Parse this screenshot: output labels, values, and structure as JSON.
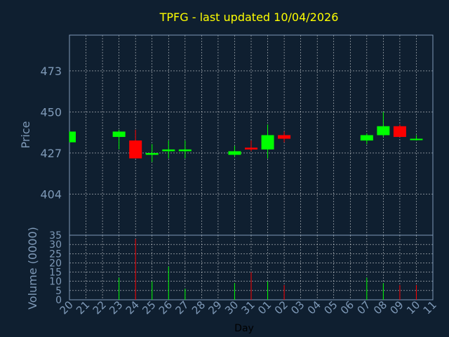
{
  "chart_data": [
    {
      "type": "candlestick",
      "title": "TPFG - last updated 10/04/2026",
      "ylabel": "Price",
      "ylim": [
        381,
        493
      ],
      "yticks": [
        404,
        427,
        450,
        473
      ],
      "x": [
        "20",
        "21",
        "22",
        "23",
        "24",
        "25",
        "26",
        "27",
        "28",
        "29",
        "30",
        "31",
        "01",
        "02",
        "03",
        "04",
        "05",
        "06",
        "07",
        "08",
        "09",
        "10",
        "11"
      ],
      "candles": [
        {
          "day": "20",
          "open": 433,
          "close": 439,
          "high": 439,
          "low": 433
        },
        {
          "day": "23",
          "open": 436,
          "close": 439,
          "high": 440,
          "low": 429
        },
        {
          "day": "24",
          "open": 434,
          "close": 424,
          "high": 440,
          "low": 424
        },
        {
          "day": "25",
          "open": 426,
          "close": 427,
          "high": 432,
          "low": 422
        },
        {
          "day": "26",
          "open": 428,
          "close": 429,
          "high": 434,
          "low": 424
        },
        {
          "day": "27",
          "open": 428,
          "close": 429,
          "high": 434,
          "low": 424
        },
        {
          "day": "30",
          "open": 426,
          "close": 428,
          "high": 431,
          "low": 425
        },
        {
          "day": "31",
          "open": 430,
          "close": 429,
          "high": 434,
          "low": 428
        },
        {
          "day": "01",
          "open": 429,
          "close": 437,
          "high": 443,
          "low": 424
        },
        {
          "day": "02",
          "open": 437,
          "close": 435,
          "high": 439,
          "low": 433
        },
        {
          "day": "07",
          "open": 434,
          "close": 437,
          "high": 438,
          "low": 432
        },
        {
          "day": "08",
          "open": 437,
          "close": 442,
          "high": 450,
          "low": 436
        },
        {
          "day": "09",
          "open": 442,
          "close": 436,
          "high": 443,
          "low": 436
        },
        {
          "day": "10",
          "open": 435,
          "close": 435,
          "high": 437,
          "low": 434
        }
      ],
      "colors": {
        "up": "#00ff00",
        "down": "#ff0000"
      }
    },
    {
      "type": "bar",
      "ylabel": "Volume (0000)",
      "xlabel": "Day",
      "ylim": [
        0,
        35
      ],
      "yticks": [
        0,
        5,
        10,
        15,
        20,
        25,
        30,
        35
      ],
      "x": [
        "20",
        "21",
        "22",
        "23",
        "24",
        "25",
        "26",
        "27",
        "28",
        "29",
        "30",
        "31",
        "01",
        "02",
        "03",
        "04",
        "05",
        "06",
        "07",
        "08",
        "09",
        "10",
        "11"
      ],
      "bars": [
        {
          "day": "23",
          "value": 12,
          "color": "#00ff00"
        },
        {
          "day": "24",
          "value": 33,
          "color": "#ff0000"
        },
        {
          "day": "25",
          "value": 10,
          "color": "#00ff00"
        },
        {
          "day": "26",
          "value": 18,
          "color": "#00ff00"
        },
        {
          "day": "27",
          "value": 6,
          "color": "#00ff00"
        },
        {
          "day": "30",
          "value": 9,
          "color": "#00ff00"
        },
        {
          "day": "31",
          "value": 15,
          "color": "#ff0000"
        },
        {
          "day": "01",
          "value": 10,
          "color": "#00ff00"
        },
        {
          "day": "02",
          "value": 8,
          "color": "#ff0000"
        },
        {
          "day": "07",
          "value": 12,
          "color": "#00ff00"
        },
        {
          "day": "08",
          "value": 9,
          "color": "#00ff00"
        },
        {
          "day": "09",
          "value": 8,
          "color": "#ff0000"
        },
        {
          "day": "10",
          "value": 8,
          "color": "#ff0000"
        }
      ]
    }
  ],
  "style": {
    "background": "#0f1f30",
    "title_color": "#ffff00",
    "axis_color": "#7f9ab8",
    "grid_color": "#ffffff",
    "grid": true
  }
}
